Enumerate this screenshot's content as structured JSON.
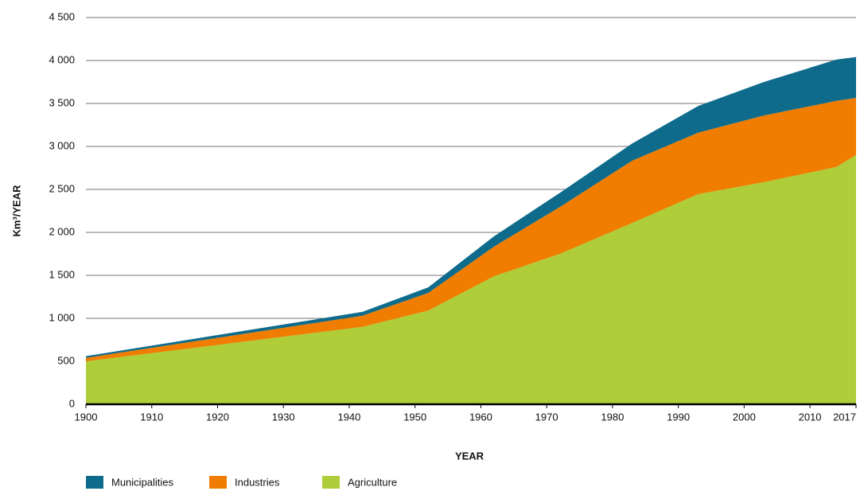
{
  "chart_data": {
    "type": "stacked_area",
    "x": [
      1900,
      1942,
      1952,
      1962,
      1972,
      1983,
      1993,
      2003,
      2014,
      2017
    ],
    "series": [
      {
        "name": "Municipalities",
        "color": "#0e6b8c",
        "values": [
          20,
          45,
          65,
          120,
          165,
          200,
          310,
          390,
          480,
          475
        ]
      },
      {
        "name": "Industries",
        "color": "#f07d00",
        "values": [
          40,
          130,
          205,
          345,
          545,
          725,
          715,
          775,
          770,
          665
        ]
      },
      {
        "name": "Agriculture",
        "color": "#aecd39",
        "values": [
          500,
          900,
          1090,
          1490,
          1750,
          2110,
          2445,
          2585,
          2760,
          2900
        ]
      }
    ],
    "xlim": [
      1900,
      2017
    ],
    "xticks": [
      1900,
      1910,
      1920,
      1930,
      1940,
      1950,
      1960,
      1970,
      1980,
      1990,
      2000,
      2010,
      2017
    ],
    "ylim": [
      0,
      4500
    ],
    "yticks": [
      0,
      500,
      {
        "value": 1000,
        "label": "1 000"
      },
      {
        "value": 1500,
        "label": "1 500"
      },
      {
        "value": 2000,
        "label": "2 000"
      },
      {
        "value": 2500,
        "label": "2 500"
      },
      {
        "value": 3000,
        "label": "3 000"
      },
      {
        "value": 3500,
        "label": "3 500"
      },
      {
        "value": 4000,
        "label": "4 000"
      },
      {
        "value": 4500,
        "label": "4 500"
      }
    ],
    "xlabel": "YEAR",
    "ylabel": "Km³/YEAR",
    "grid": true
  }
}
